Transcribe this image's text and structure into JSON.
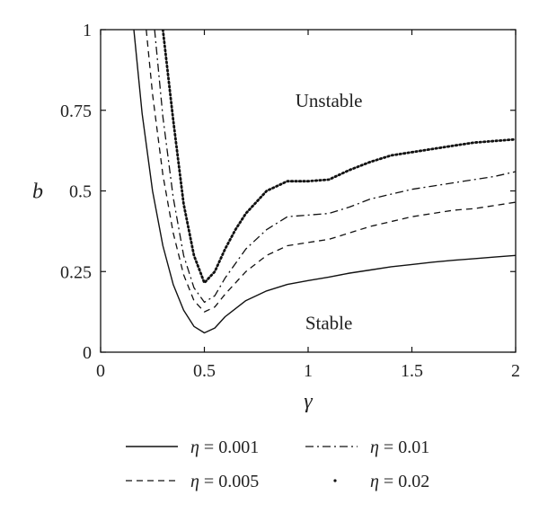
{
  "chart_data": {
    "type": "line",
    "xlabel": "γ",
    "ylabel": "b",
    "xlim": [
      0,
      2
    ],
    "ylim": [
      0,
      1
    ],
    "x_ticks": [
      "0",
      "0.5",
      "1",
      "1.5",
      "2"
    ],
    "y_ticks": [
      "0",
      "0.25",
      "0.5",
      "0.75",
      "1"
    ],
    "grid": false,
    "legend_position": "below",
    "annotations": [
      {
        "text": "Unstable",
        "x": 1.1,
        "y": 0.78
      },
      {
        "text": "Stable",
        "x": 1.1,
        "y": 0.09
      }
    ],
    "series": [
      {
        "name": "η = 0.001",
        "style": "solid",
        "x": [
          0.16,
          0.2,
          0.25,
          0.3,
          0.35,
          0.4,
          0.45,
          0.5,
          0.55,
          0.6,
          0.7,
          0.8,
          0.9,
          1.0,
          1.1,
          1.2,
          1.3,
          1.4,
          1.5,
          1.6,
          1.7,
          1.8,
          1.9,
          2.0
        ],
        "y": [
          1.0,
          0.74,
          0.5,
          0.33,
          0.21,
          0.13,
          0.08,
          0.06,
          0.075,
          0.11,
          0.16,
          0.19,
          0.21,
          0.222,
          0.233,
          0.245,
          0.255,
          0.265,
          0.272,
          0.279,
          0.285,
          0.29,
          0.295,
          0.3
        ]
      },
      {
        "name": "η = 0.005",
        "style": "dashed",
        "x": [
          0.22,
          0.25,
          0.3,
          0.35,
          0.4,
          0.45,
          0.5,
          0.55,
          0.6,
          0.7,
          0.8,
          0.9,
          1.0,
          1.1,
          1.2,
          1.3,
          1.4,
          1.5,
          1.6,
          1.7,
          1.8,
          1.9,
          2.0
        ],
        "y": [
          1.0,
          0.8,
          0.55,
          0.37,
          0.24,
          0.16,
          0.125,
          0.14,
          0.18,
          0.25,
          0.3,
          0.33,
          0.34,
          0.35,
          0.37,
          0.39,
          0.405,
          0.42,
          0.43,
          0.44,
          0.445,
          0.455,
          0.465
        ]
      },
      {
        "name": "η = 0.01",
        "style": "dashdot",
        "x": [
          0.26,
          0.3,
          0.35,
          0.4,
          0.45,
          0.5,
          0.55,
          0.6,
          0.7,
          0.8,
          0.9,
          1.0,
          1.1,
          1.2,
          1.3,
          1.4,
          1.5,
          1.6,
          1.7,
          1.8,
          1.9,
          2.0
        ],
        "y": [
          1.0,
          0.73,
          0.48,
          0.3,
          0.2,
          0.155,
          0.175,
          0.23,
          0.32,
          0.38,
          0.42,
          0.425,
          0.43,
          0.45,
          0.475,
          0.49,
          0.505,
          0.515,
          0.525,
          0.535,
          0.545,
          0.56
        ]
      },
      {
        "name": "η = 0.02",
        "style": "dotted",
        "x": [
          0.3,
          0.35,
          0.4,
          0.45,
          0.5,
          0.55,
          0.6,
          0.65,
          0.7,
          0.8,
          0.9,
          1.0,
          1.1,
          1.2,
          1.3,
          1.4,
          1.5,
          1.6,
          1.7,
          1.8,
          1.9,
          2.0
        ],
        "y": [
          1.0,
          0.72,
          0.46,
          0.3,
          0.215,
          0.25,
          0.32,
          0.38,
          0.43,
          0.5,
          0.53,
          0.53,
          0.535,
          0.565,
          0.59,
          0.61,
          0.62,
          0.63,
          0.64,
          0.65,
          0.655,
          0.66
        ]
      }
    ]
  }
}
